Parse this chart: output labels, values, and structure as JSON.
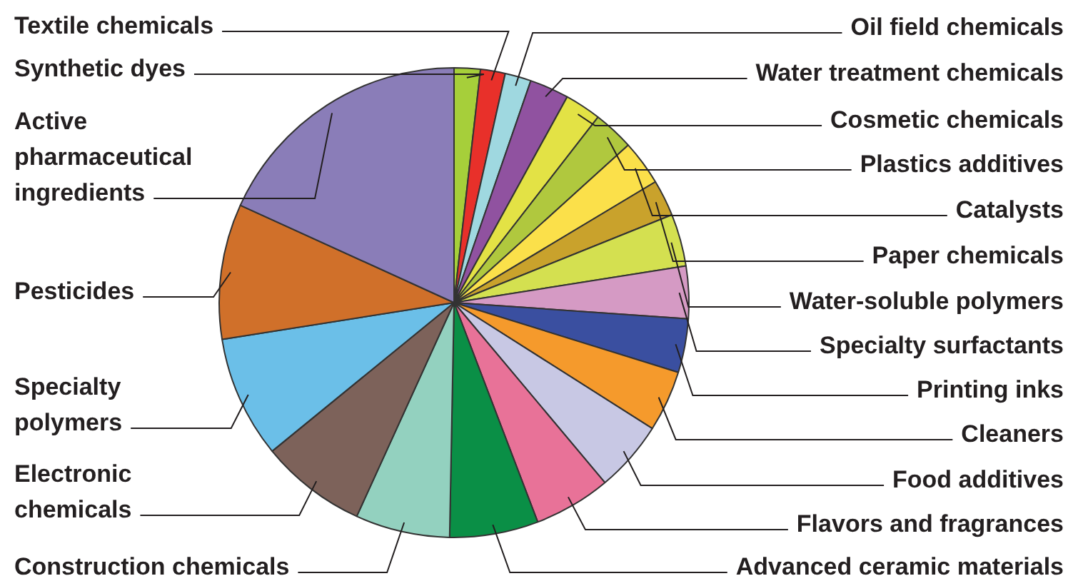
{
  "chart_data": {
    "type": "pie",
    "legend": false,
    "categories": [
      "Synthetic dyes",
      "Textile chemicals",
      "Oil field chemicals",
      "Water treatment chemicals",
      "Cosmetic chemicals",
      "Plastics additives",
      "Catalysts",
      "Paper chemicals",
      "Water-soluble polymers",
      "Specialty surfactants",
      "Printing inks",
      "Cleaners",
      "Food additives",
      "Flavors and fragrances",
      "Advanced ceramic materials",
      "Construction chemicals",
      "Electronic chemicals",
      "Specialty polymers",
      "Pesticides",
      "Active pharmaceutical ingredients"
    ],
    "values": [
      1.8,
      1.7,
      1.8,
      2.7,
      2.5,
      2.8,
      3.1,
      2.5,
      3.6,
      3.6,
      3.7,
      4.2,
      4.9,
      5.3,
      6.1,
      6.5,
      7.3,
      8.4,
      9.3,
      18.2
    ],
    "colors": [
      "#a6cf3a",
      "#e8302a",
      "#9fd8e0",
      "#9052a0",
      "#e3e245",
      "#b0c83e",
      "#fbe04a",
      "#c9a22c",
      "#d4e050",
      "#d59ac4",
      "#3a4fa0",
      "#f59a2c",
      "#c8c8e4",
      "#e87298",
      "#0a8f46",
      "#93d1bf",
      "#7d625a",
      "#6bbfe8",
      "#d0702a",
      "#8a7db8"
    ]
  }
}
